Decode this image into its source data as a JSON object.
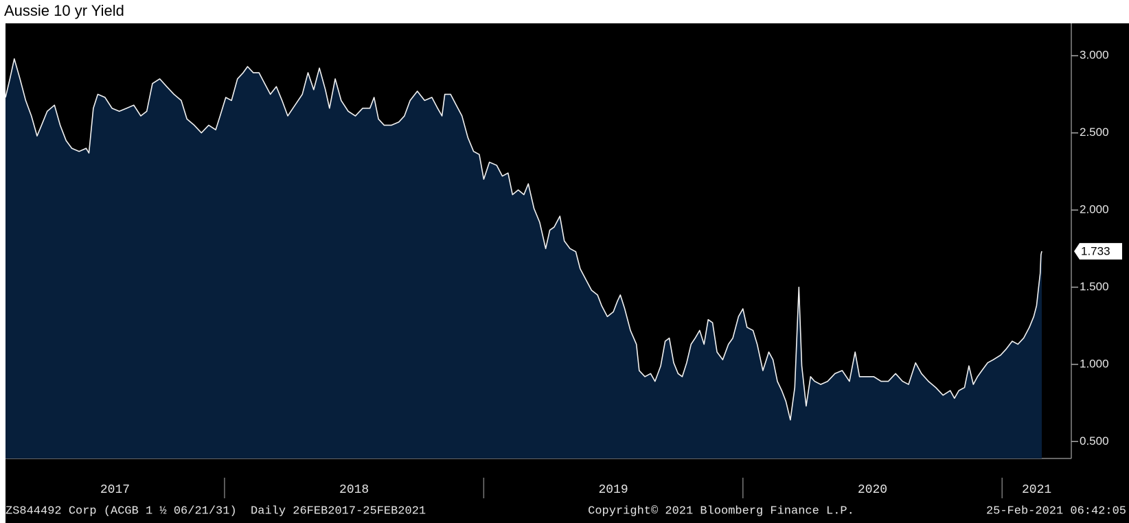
{
  "chart_data": {
    "type": "area",
    "title": "Aussie 10 yr Yield",
    "footer": [
      "ZS844492 Corp (ACGB 1 ½ 06/21/31)  Daily 26FEB2017-25FEB2021",
      "Copyright© 2021 Bloomberg Finance L.P.",
      "25-Feb-2021 06:42:05"
    ],
    "color": "#f2f2f2",
    "fill_color": "#071f3b",
    "axis_side": "right",
    "xlim": [
      2017.155,
      2021.267
    ],
    "xticks": [
      2017,
      2018,
      2019,
      2020,
      2021
    ],
    "ylim": [
      0.39,
      3.21
    ],
    "yticks": [
      {
        "value": 0.5,
        "label": "0.500"
      },
      {
        "value": 1,
        "label": "1.000"
      },
      {
        "value": 1.5,
        "label": "1.500"
      },
      {
        "value": 2,
        "label": "2.000"
      },
      {
        "value": 2.5,
        "label": "2.500"
      },
      {
        "value": 3,
        "label": "3.000"
      }
    ],
    "x": [
      2017.155,
      2017.172,
      2017.189,
      2017.211,
      2017.233,
      2017.255,
      2017.277,
      2017.294,
      2017.316,
      2017.344,
      2017.366,
      2017.389,
      2017.411,
      2017.439,
      2017.466,
      2017.477,
      2017.494,
      2017.511,
      2017.539,
      2017.566,
      2017.594,
      2017.622,
      2017.65,
      2017.677,
      2017.7,
      2017.722,
      2017.75,
      2017.777,
      2017.805,
      2017.833,
      2017.855,
      2017.883,
      2017.911,
      2017.939,
      2017.966,
      2017.983,
      2018.005,
      2018.027,
      2018.05,
      2018.072,
      2018.089,
      2018.111,
      2018.133,
      2018.155,
      2018.177,
      2018.2,
      2018.222,
      2018.244,
      2018.272,
      2018.3,
      2018.322,
      2018.344,
      2018.366,
      2018.389,
      2018.405,
      2018.427,
      2018.45,
      2018.477,
      2018.505,
      2018.533,
      2018.561,
      2018.577,
      2018.594,
      2018.616,
      2018.644,
      2018.672,
      2018.694,
      2018.716,
      2018.744,
      2018.772,
      2018.8,
      2018.822,
      2018.839,
      2018.85,
      2018.872,
      2018.894,
      2018.916,
      2018.939,
      2018.961,
      2018.983,
      2019.0,
      2019.022,
      2019.05,
      2019.072,
      2019.094,
      2019.111,
      2019.133,
      2019.155,
      2019.172,
      2019.194,
      2019.216,
      2019.239,
      2019.255,
      2019.272,
      2019.294,
      2019.311,
      2019.333,
      2019.355,
      2019.372,
      2019.394,
      2019.416,
      2019.439,
      2019.455,
      2019.477,
      2019.5,
      2019.516,
      2019.527,
      2019.544,
      2019.566,
      2019.589,
      2019.6,
      2019.622,
      2019.644,
      2019.661,
      2019.683,
      2019.7,
      2019.716,
      2019.733,
      2019.75,
      2019.766,
      2019.783,
      2019.8,
      2019.816,
      2019.833,
      2019.85,
      2019.866,
      2019.883,
      2019.9,
      2019.922,
      2019.944,
      2019.961,
      2019.983,
      2020.0,
      2020.016,
      2020.039,
      2020.055,
      2020.077,
      2020.1,
      2020.116,
      2020.133,
      2020.15,
      2020.166,
      2020.183,
      2020.2,
      2020.216,
      2020.227,
      2020.244,
      2020.261,
      2020.277,
      2020.3,
      2020.327,
      2020.355,
      2020.383,
      2020.411,
      2020.433,
      2020.45,
      2020.477,
      2020.505,
      2020.533,
      2020.561,
      2020.589,
      2020.616,
      2020.639,
      2020.666,
      2020.689,
      2020.716,
      2020.744,
      2020.772,
      2020.8,
      2020.816,
      2020.833,
      2020.855,
      2020.872,
      2020.889,
      2020.905,
      2020.922,
      2020.944,
      2020.966,
      2020.994,
      2021.016,
      2021.039,
      2021.061,
      2021.083,
      2021.105,
      2021.122,
      2021.133,
      2021.141,
      2021.147,
      2021.15,
      2021.153
    ],
    "values": [
      2.73,
      2.85,
      2.98,
      2.85,
      2.71,
      2.61,
      2.48,
      2.55,
      2.64,
      2.68,
      2.55,
      2.45,
      2.4,
      2.38,
      2.4,
      2.37,
      2.66,
      2.75,
      2.73,
      2.66,
      2.64,
      2.66,
      2.68,
      2.61,
      2.64,
      2.82,
      2.85,
      2.8,
      2.75,
      2.71,
      2.59,
      2.55,
      2.5,
      2.55,
      2.52,
      2.61,
      2.73,
      2.71,
      2.85,
      2.89,
      2.93,
      2.89,
      2.89,
      2.82,
      2.75,
      2.8,
      2.71,
      2.61,
      2.68,
      2.75,
      2.89,
      2.78,
      2.92,
      2.78,
      2.66,
      2.85,
      2.71,
      2.64,
      2.61,
      2.66,
      2.66,
      2.73,
      2.59,
      2.55,
      2.55,
      2.57,
      2.61,
      2.71,
      2.77,
      2.71,
      2.73,
      2.66,
      2.61,
      2.75,
      2.75,
      2.68,
      2.61,
      2.47,
      2.38,
      2.36,
      2.2,
      2.31,
      2.29,
      2.22,
      2.24,
      2.1,
      2.13,
      2.1,
      2.17,
      2.01,
      1.92,
      1.75,
      1.87,
      1.89,
      1.96,
      1.8,
      1.75,
      1.73,
      1.62,
      1.55,
      1.48,
      1.45,
      1.38,
      1.31,
      1.34,
      1.41,
      1.45,
      1.36,
      1.22,
      1.13,
      0.96,
      0.92,
      0.94,
      0.89,
      0.99,
      1.15,
      1.17,
      1.01,
      0.94,
      0.92,
      1.01,
      1.13,
      1.17,
      1.22,
      1.13,
      1.29,
      1.27,
      1.08,
      1.03,
      1.13,
      1.17,
      1.31,
      1.36,
      1.24,
      1.22,
      1.13,
      0.96,
      1.08,
      1.03,
      0.89,
      0.83,
      0.76,
      0.64,
      0.85,
      1.5,
      0.99,
      0.73,
      0.92,
      0.89,
      0.87,
      0.89,
      0.94,
      0.96,
      0.89,
      1.08,
      0.92,
      0.92,
      0.92,
      0.89,
      0.89,
      0.94,
      0.89,
      0.87,
      1.01,
      0.94,
      0.89,
      0.85,
      0.8,
      0.83,
      0.78,
      0.83,
      0.85,
      0.99,
      0.87,
      0.92,
      0.96,
      1.01,
      1.03,
      1.06,
      1.1,
      1.15,
      1.13,
      1.17,
      1.24,
      1.31,
      1.38,
      1.5,
      1.59,
      1.71,
      1.733
    ]
  }
}
